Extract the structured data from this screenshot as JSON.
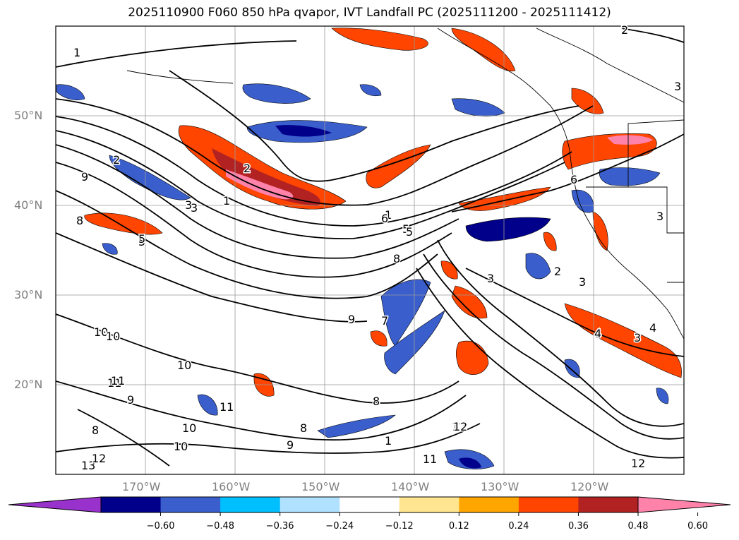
{
  "title": "2025110900 F060 850 hPa qvapor, IVT Landfall PC (2025111200 - 2025111412)",
  "map": {
    "lat_labels": [
      "50°N",
      "40°N",
      "30°N",
      "20°N"
    ],
    "lon_labels": [
      "170°W",
      "160°W",
      "150°W",
      "140°W",
      "130°W",
      "120°W"
    ],
    "lat_values": [
      50,
      40,
      30,
      20
    ],
    "lon_values": [
      -170,
      -160,
      -150,
      -140,
      -130,
      -120
    ],
    "extent": {
      "lon_min": -180,
      "lon_max": -110,
      "lat_min": 10,
      "lat_max": 60
    },
    "grid": true,
    "contour_labels": [
      "1",
      "2",
      "3",
      "2",
      "3",
      "1",
      "1",
      "2",
      "3",
      "4",
      "5",
      "6",
      "5",
      "9",
      "8",
      "5",
      "10",
      "10",
      "11",
      "11",
      "9",
      "8",
      "10",
      "10",
      "8",
      "9",
      "7",
      "8",
      "9",
      "10",
      "11",
      "12",
      "13",
      "12",
      "11",
      "12",
      "8",
      "1",
      "3",
      "2",
      "3",
      "4",
      "3",
      "5",
      "3",
      "6",
      "12"
    ]
  },
  "colorbar": {
    "boundaries": [
      -0.72,
      -0.6,
      -0.48,
      -0.36,
      -0.24,
      -0.12,
      0.12,
      0.24,
      0.36,
      0.48,
      0.6,
      0.72
    ],
    "colors": [
      "#9932cc",
      "#00008b",
      "#3a5fcd",
      "#00bfff",
      "#b0e2ff",
      "#ffffff",
      "#ffe58f",
      "#ffa500",
      "#ff4500",
      "#b22222",
      "#ff82ab"
    ],
    "extend_min_color": "#9932cc",
    "extend_max_color": "#ff82ab",
    "tick_labels": [
      "−0.60",
      "−0.48",
      "−0.36",
      "−0.24",
      "−0.12",
      "0.12",
      "0.24",
      "0.36",
      "0.48",
      "0.60"
    ]
  }
}
